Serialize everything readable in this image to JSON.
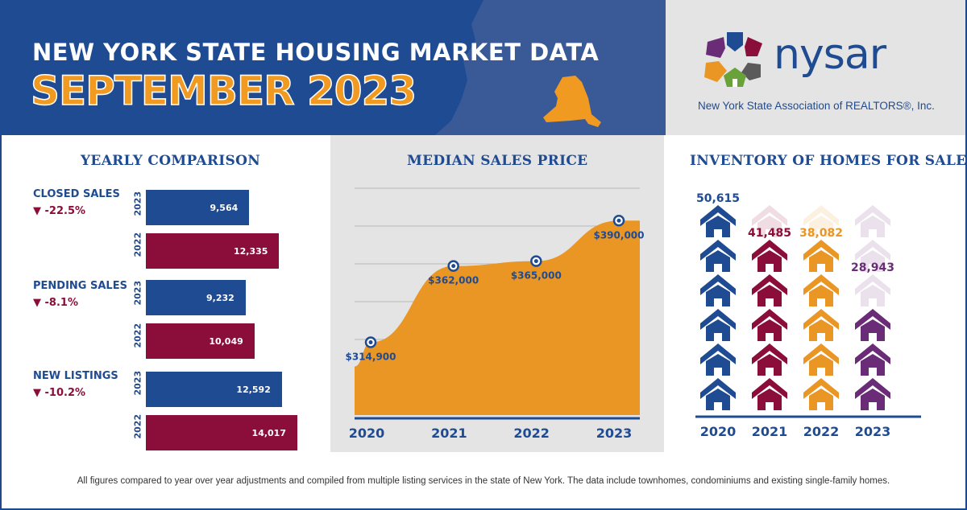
{
  "header": {
    "title": "NEW YORK STATE HOUSING MARKET DATA",
    "subtitle": "SEPTEMBER 2023"
  },
  "logo": {
    "wordmark": "nysar",
    "tagline": "New York State Association of REALTORS®, Inc."
  },
  "colors": {
    "navy": "#1f4b92",
    "maroon": "#8b0e3a",
    "orange": "#ea9625",
    "purple": "#6a2c77",
    "panel_gray": "#e4e4e4"
  },
  "yearly_comparison": {
    "title": "YEARLY COMPARISON",
    "metrics": [
      {
        "label": "CLOSED SALES",
        "change": "-22.5%",
        "rows": [
          {
            "year": "2023",
            "display": "9,564"
          },
          {
            "year": "2022",
            "display": "12,335"
          }
        ]
      },
      {
        "label": "PENDING SALES",
        "change": "-8.1%",
        "rows": [
          {
            "year": "2023",
            "display": "9,232"
          },
          {
            "year": "2022",
            "display": "10,049"
          }
        ]
      },
      {
        "label": "NEW LISTINGS",
        "change": "-10.2%",
        "rows": [
          {
            "year": "2023",
            "display": "12,592"
          },
          {
            "year": "2022",
            "display": "14,017"
          }
        ]
      }
    ]
  },
  "median_price": {
    "title": "MEDIAN SALES PRICE",
    "labels": [
      "$314,900",
      "$362,000",
      "$365,000",
      "$390,000"
    ]
  },
  "inventory": {
    "title": "INVENTORY OF HOMES FOR SALE",
    "labels": [
      "50,615",
      "41,485",
      "38,082",
      "28,943"
    ]
  },
  "footnote": "All figures compared to year over year adjustments and compiled from multiple listing services in the state of New York.  The data include townhomes, condominiums and existing single-family homes.",
  "chart_data": [
    {
      "type": "bar",
      "title": "YEARLY COMPARISON",
      "categories": [
        "CLOSED SALES",
        "PENDING SALES",
        "NEW LISTINGS"
      ],
      "series": [
        {
          "name": "2023",
          "values": [
            9564,
            9232,
            12592
          ]
        },
        {
          "name": "2022",
          "values": [
            12335,
            10049,
            14017
          ]
        }
      ],
      "changes": [
        "-22.5%",
        "-8.1%",
        "-10.2%"
      ],
      "xlim": [
        0,
        14017
      ]
    },
    {
      "type": "area",
      "title": "MEDIAN SALES PRICE",
      "x": [
        "2020",
        "2021",
        "2022",
        "2023"
      ],
      "values": [
        314900,
        362000,
        365000,
        390000
      ],
      "ylim": [
        270000,
        410000
      ],
      "grid": true
    },
    {
      "type": "bar",
      "title": "INVENTORY OF HOMES FOR SALE",
      "categories": [
        "2020",
        "2021",
        "2022",
        "2023"
      ],
      "values": [
        50615,
        41485,
        38082,
        28943
      ],
      "ylim": [
        0,
        50615
      ]
    }
  ]
}
